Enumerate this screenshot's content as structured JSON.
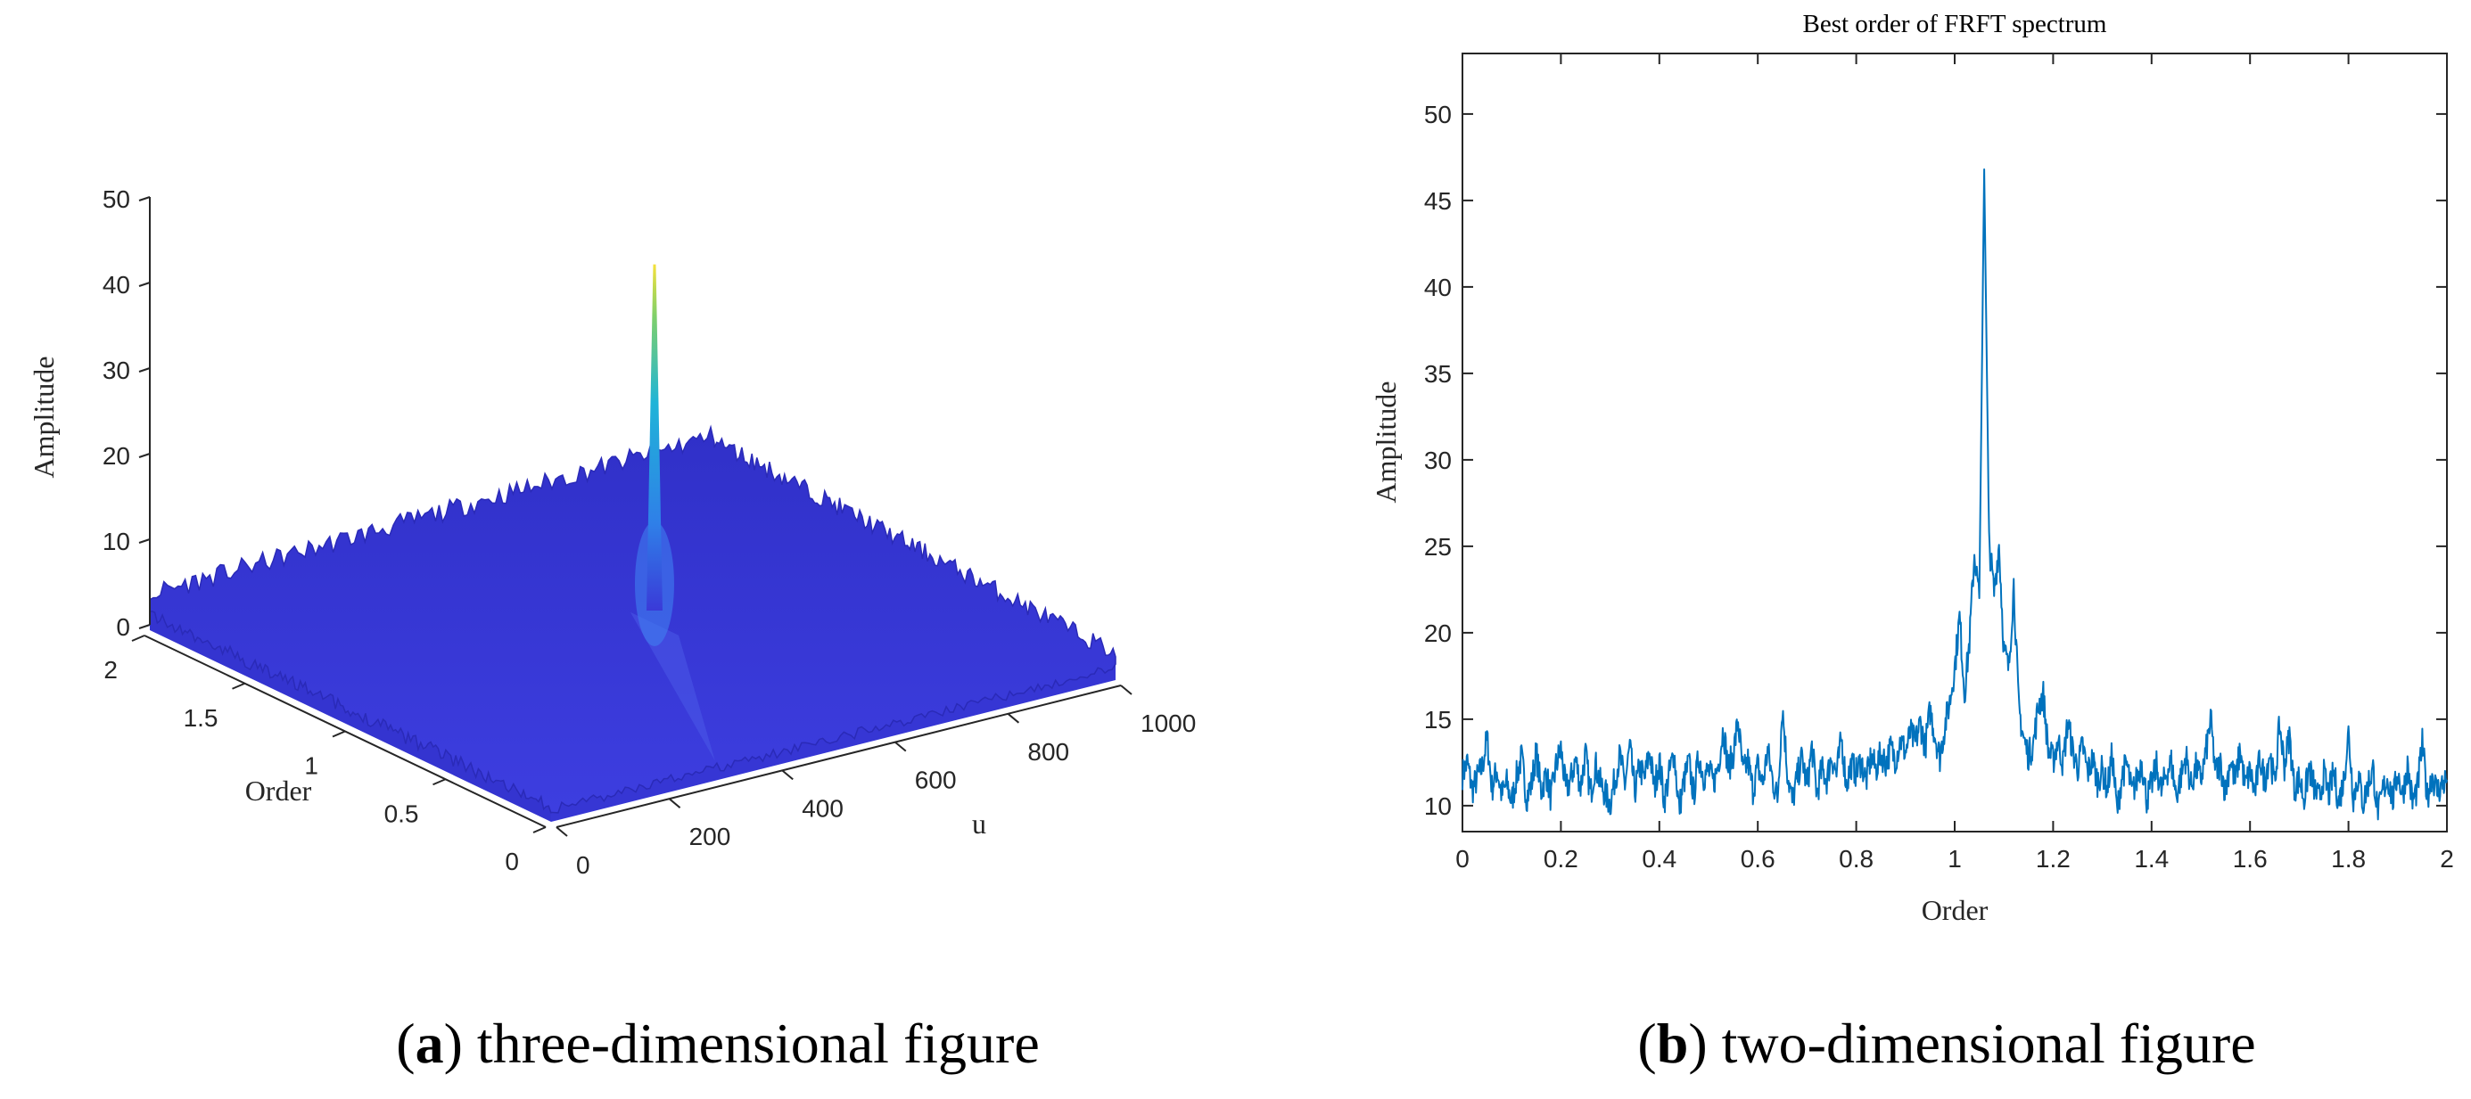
{
  "chart_data": [
    {
      "type": "surface",
      "panel": "a",
      "zlabel": "Amplitude",
      "xlabel": "Order",
      "ylabel": "u",
      "zlim": [
        0,
        50
      ],
      "xlim": [
        0,
        2
      ],
      "ylim": [
        0,
        1000
      ],
      "z_ticks": [
        "0",
        "10",
        "20",
        "30",
        "40",
        "50"
      ],
      "order_ticks": [
        "0",
        "0.5",
        "1",
        "1.5",
        "2"
      ],
      "u_ticks": [
        "0",
        "200",
        "400",
        "600",
        "800",
        "1000"
      ],
      "peak": {
        "order": 1.06,
        "amplitude": 44
      },
      "colormap": "parula",
      "colors": {
        "low": "#3a3ad8",
        "mid": "#1fa8e0",
        "high": "#f5e13a"
      },
      "grid": false
    },
    {
      "type": "line",
      "panel": "b",
      "title": "Best order of FRFT spectrum",
      "xlabel": "Order",
      "ylabel": "Amplitude",
      "xlim": [
        0,
        2
      ],
      "ylim": [
        8.5,
        53.5
      ],
      "x_ticks": [
        "0",
        "0.2",
        "0.4",
        "0.6",
        "0.8",
        "1",
        "1.2",
        "1.4",
        "1.6",
        "1.8",
        "2"
      ],
      "y_ticks": [
        "10",
        "15",
        "20",
        "25",
        "30",
        "35",
        "40",
        "45",
        "50"
      ],
      "grid": false,
      "color": "#0072bd",
      "x_step": 0.01,
      "values": [
        11.8,
        12.5,
        10.9,
        11.6,
        12.2,
        13.9,
        11.0,
        12.1,
        10.6,
        11.3,
        10.2,
        11.7,
        12.8,
        10.5,
        11.2,
        13.1,
        10.8,
        11.9,
        10.4,
        12.3,
        13.3,
        10.9,
        11.5,
        12.7,
        11.1,
        13.0,
        10.6,
        12.4,
        11.3,
        10.7,
        10.1,
        11.6,
        12.9,
        11.2,
        13.4,
        10.8,
        12.2,
        11.5,
        13.2,
        11.0,
        12.6,
        10.3,
        11.8,
        13.1,
        9.8,
        11.4,
        12.5,
        10.6,
        12.9,
        11.7,
        12.0,
        11.3,
        12.4,
        14.5,
        12.1,
        13.0,
        14.9,
        11.8,
        12.6,
        10.9,
        12.3,
        11.2,
        13.2,
        11.5,
        10.4,
        15.7,
        12.0,
        10.2,
        11.6,
        12.8,
        11.1,
        13.4,
        10.7,
        12.1,
        11.5,
        12.9,
        11.8,
        13.9,
        11.2,
        12.4,
        11.9,
        12.6,
        11.4,
        12.8,
        12.1,
        13.0,
        12.5,
        13.3,
        12.7,
        13.8,
        13.1,
        14.2,
        13.6,
        14.8,
        13.4,
        15.5,
        14.1,
        12.8,
        14.6,
        16.0,
        18.0,
        20.9,
        16.5,
        19.5,
        24.6,
        22.0,
        46.8,
        25.2,
        22.3,
        25.1,
        19.0,
        17.9,
        22.8,
        15.7,
        13.9,
        12.9,
        13.6,
        15.8,
        16.4,
        13.2,
        12.6,
        13.8,
        12.4,
        14.9,
        13.1,
        12.2,
        13.5,
        11.9,
        12.7,
        11.4,
        12.1,
        10.9,
        13.0,
        9.6,
        11.8,
        12.4,
        10.7,
        11.5,
        12.6,
        10.4,
        11.2,
        12.3,
        10.8,
        11.9,
        12.5,
        10.6,
        11.7,
        12.9,
        11.1,
        12.2,
        11.5,
        13.0,
        15.0,
        11.9,
        12.4,
        10.8,
        12.7,
        11.3,
        13.3,
        11.1,
        12.0,
        10.7,
        12.8,
        11.4,
        13.1,
        11.2,
        14.7,
        12.3,
        14.1,
        11.0,
        11.6,
        10.4,
        12.2,
        11.1,
        10.3,
        11.8,
        10.6,
        12.0,
        10.2,
        11.4,
        14.2,
        10.5,
        11.7,
        10.1,
        11.3,
        12.1,
        9.4,
        10.9,
        11.6,
        10.3,
        11.9,
        10.6,
        12.3,
        10.2,
        11.0,
        13.6,
        10.5,
        11.8,
        10.8,
        11.2,
        11.5
      ]
    }
  ],
  "captions": {
    "a": {
      "letter": "a",
      "text": " three-dimensional figure"
    },
    "b": {
      "letter": "b",
      "text": " two-dimensional figure"
    }
  }
}
